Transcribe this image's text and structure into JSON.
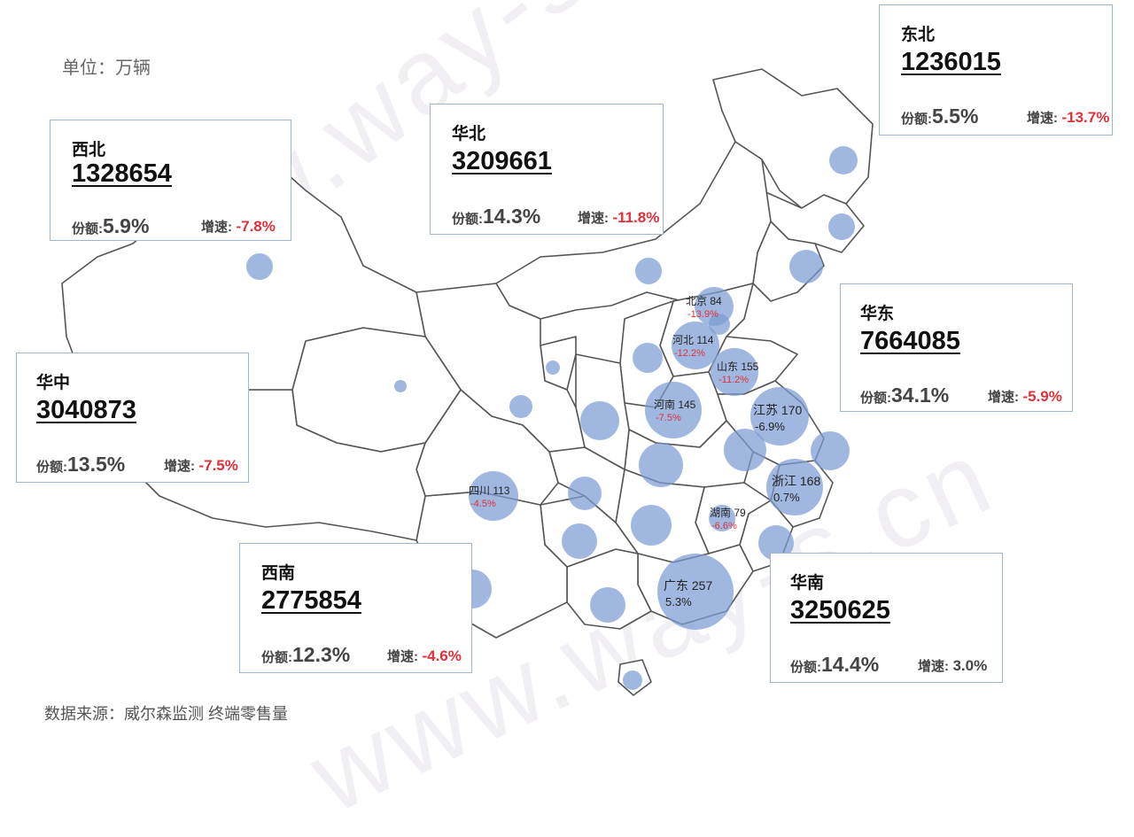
{
  "unit_label": "单位：万辆",
  "source_label": "数据来源：威尔森监测  终端零售量",
  "watermark": "www.way-s.cn",
  "labels": {
    "share": "份额:",
    "growth": "增速:"
  },
  "colors": {
    "bubble": "#7b9cd3",
    "negative": "#e0303a",
    "box_border": "#9fb4c8"
  },
  "regions": [
    {
      "name": "东北",
      "total": "1236015",
      "share": "5.5%",
      "growth": "-13.7%",
      "negative": true
    },
    {
      "name": "华北",
      "total": "3209661",
      "share": "14.3%",
      "growth": "-11.8%",
      "negative": true
    },
    {
      "name": "西北",
      "total": "1328654",
      "share": "5.9%",
      "growth": "-7.8%",
      "negative": true
    },
    {
      "name": "华东",
      "total": "7664085",
      "share": "34.1%",
      "growth": "-5.9%",
      "negative": true
    },
    {
      "name": "华中",
      "total": "3040873",
      "share": "13.5%",
      "growth": "-7.5%",
      "negative": true
    },
    {
      "name": "西南",
      "total": "2775854",
      "share": "12.3%",
      "growth": "-4.6%",
      "negative": true
    },
    {
      "name": "华南",
      "total": "3250625",
      "share": "14.4%",
      "growth": "3.0%",
      "negative": false
    }
  ],
  "provinces": [
    {
      "name": "北京",
      "value": "84",
      "growth": "-13.9%"
    },
    {
      "name": "河北",
      "value": "114",
      "growth": "-12.2%"
    },
    {
      "name": "山东",
      "value": "155",
      "growth": "-11.2%"
    },
    {
      "name": "河南",
      "value": "145",
      "growth": "-7.5%"
    },
    {
      "name": "江苏",
      "value": "170",
      "growth": "-6.9%"
    },
    {
      "name": "浙江",
      "value": "168",
      "growth": "0.7%"
    },
    {
      "name": "四川",
      "value": "113",
      "growth": "-4.5%"
    },
    {
      "name": "湖南",
      "value": "79",
      "growth": "-6.6%"
    },
    {
      "name": "广东",
      "value": "257",
      "growth": "5.3%"
    }
  ]
}
